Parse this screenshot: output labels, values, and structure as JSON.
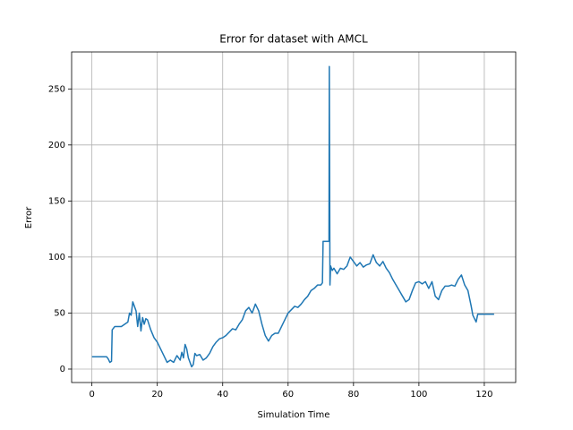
{
  "chart_data": {
    "type": "line",
    "title": "Error for dataset with AMCL",
    "x_label": "Simulation Time",
    "y_label": "Error",
    "x": [
      0,
      4.5,
      5,
      5.5,
      6,
      6.2,
      7,
      9,
      10,
      11,
      11.5,
      12,
      12.5,
      13,
      13.5,
      14,
      14.5,
      15,
      15.5,
      16,
      16.5,
      17,
      18,
      19,
      20,
      21,
      22,
      23,
      24,
      25,
      26,
      27,
      27.5,
      28,
      28.5,
      29,
      29.5,
      30,
      30.5,
      31,
      31.5,
      32,
      33,
      34,
      35,
      36,
      37,
      38,
      39,
      40,
      41,
      42,
      43,
      44,
      45,
      46,
      47,
      48,
      49,
      50,
      51,
      52,
      53,
      54,
      55,
      56,
      57,
      58,
      59,
      60,
      61,
      62,
      63,
      64,
      65,
      66,
      67,
      68,
      69,
      70,
      70.5,
      70.7,
      72.5,
      72.6,
      72.8,
      73,
      73.5,
      74,
      75,
      76,
      77,
      78,
      79,
      80,
      81,
      82,
      83,
      84,
      85,
      86,
      87,
      88,
      89,
      90,
      91,
      92,
      93,
      94,
      95,
      96,
      97,
      98,
      99,
      100,
      101,
      102,
      103,
      104,
      105,
      106,
      107,
      108,
      109,
      110,
      111,
      112,
      113,
      114,
      115,
      116,
      116.5,
      117,
      117.5,
      118,
      123
    ],
    "series": [
      {
        "name": "Error",
        "color": "#1f77b4",
        "values": [
          11,
          11,
          9,
          6,
          7,
          35,
          38,
          38,
          40,
          42,
          50,
          48,
          60,
          56,
          52,
          38,
          50,
          34,
          46,
          40,
          45,
          44,
          35,
          28,
          24,
          18,
          12,
          6,
          8,
          6,
          12,
          8,
          15,
          10,
          22,
          18,
          10,
          6,
          2,
          4,
          14,
          12,
          13,
          8,
          10,
          14,
          20,
          24,
          27,
          28,
          30,
          33,
          36,
          35,
          40,
          44,
          52,
          55,
          50,
          58,
          52,
          40,
          30,
          25,
          30,
          32,
          32,
          38,
          44,
          50,
          53,
          56,
          55,
          58,
          62,
          65,
          70,
          72,
          75,
          75,
          77,
          114,
          114,
          270,
          75,
          92,
          88,
          90,
          85,
          90,
          89,
          92,
          100,
          96,
          92,
          95,
          91,
          93,
          94,
          102,
          95,
          92,
          96,
          90,
          86,
          80,
          75,
          70,
          65,
          60,
          62,
          70,
          77,
          78,
          76,
          78,
          72,
          78,
          65,
          62,
          70,
          74,
          74,
          75,
          74,
          80,
          84,
          75,
          70,
          56,
          48,
          45,
          42,
          49,
          49
        ]
      }
    ],
    "xlim": [
      -6.2,
      129.6
    ],
    "ylim": [
      -12,
      283
    ],
    "xticks": [
      0,
      20,
      40,
      60,
      80,
      100,
      120
    ],
    "yticks": [
      0,
      50,
      100,
      150,
      200,
      250
    ],
    "grid": true
  }
}
